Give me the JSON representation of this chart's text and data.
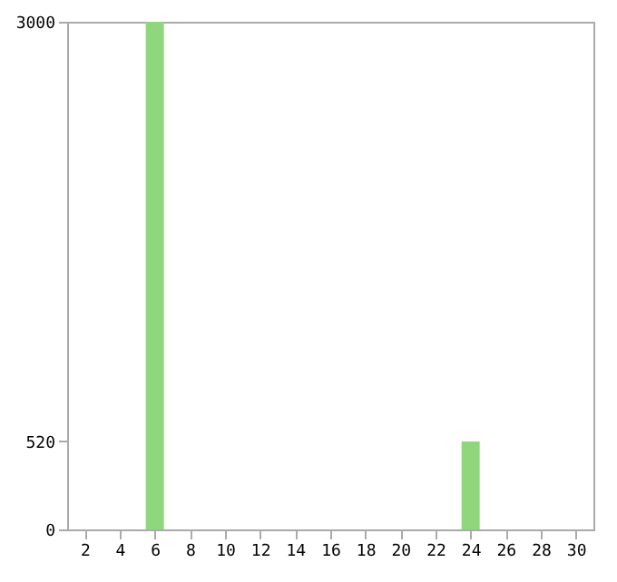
{
  "chart_data": {
    "type": "bar",
    "x": [
      1,
      2,
      3,
      4,
      5,
      6,
      7,
      8,
      9,
      10,
      11,
      12,
      13,
      14,
      15,
      16,
      17,
      18,
      19,
      20,
      21,
      22,
      23,
      24,
      25,
      26,
      27,
      28,
      29,
      30,
      31
    ],
    "values": [
      0,
      0,
      0,
      0,
      0,
      3000,
      0,
      0,
      0,
      0,
      0,
      0,
      0,
      0,
      0,
      0,
      0,
      0,
      0,
      0,
      0,
      0,
      0,
      520,
      0,
      0,
      0,
      0,
      0,
      0,
      0
    ],
    "color": "#90d67c",
    "xlim": [
      1,
      31
    ],
    "xticks": [
      2,
      4,
      6,
      8,
      10,
      12,
      14,
      16,
      18,
      20,
      22,
      24,
      26,
      28,
      30
    ],
    "ylim": [
      0,
      3000
    ],
    "yticks": [
      0,
      520,
      3000
    ],
    "grid": false
  }
}
